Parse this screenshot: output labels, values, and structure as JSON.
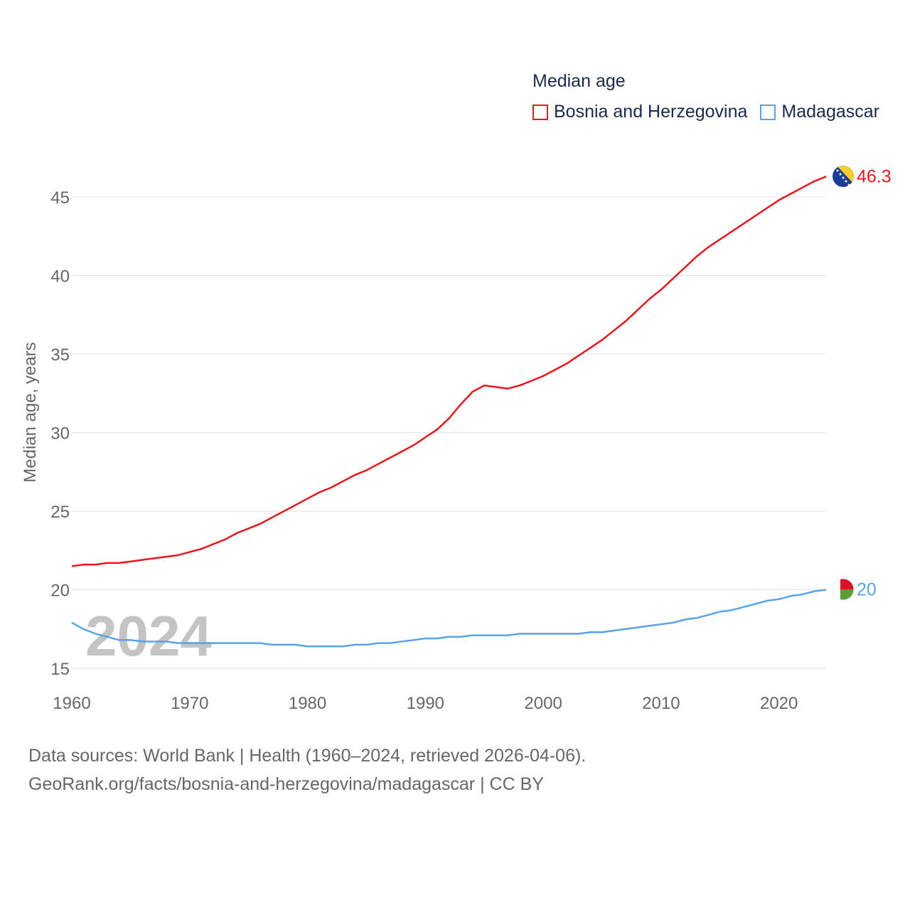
{
  "legend": {
    "title": "Median age",
    "items": [
      {
        "label": "Bosnia and Herzegovina",
        "color": "#e8171f"
      },
      {
        "label": "Madagascar",
        "color": "#5aa3e6"
      }
    ]
  },
  "source": {
    "line1": "Data sources: World Bank | Health (1960–2024, retrieved 2026-04-06).",
    "line2": "GeoRank.org/facts/bosnia-and-herzegovina/madagascar | CC BY"
  },
  "chart_data": {
    "type": "line",
    "title": "Median age",
    "xlabel": "",
    "ylabel": "Median age, years",
    "xlim": [
      1960,
      2024
    ],
    "ylim": [
      15,
      47
    ],
    "x_ticks": [
      1960,
      1970,
      1980,
      1990,
      2000,
      2010,
      2020
    ],
    "y_ticks": [
      15,
      20,
      25,
      30,
      35,
      40,
      45
    ],
    "grid": true,
    "legend_position": "top-right",
    "year_label": "2024",
    "x": [
      1960,
      1961,
      1962,
      1963,
      1964,
      1965,
      1966,
      1967,
      1968,
      1969,
      1970,
      1971,
      1972,
      1973,
      1974,
      1975,
      1976,
      1977,
      1978,
      1979,
      1980,
      1981,
      1982,
      1983,
      1984,
      1985,
      1986,
      1987,
      1988,
      1989,
      1990,
      1991,
      1992,
      1993,
      1994,
      1995,
      1996,
      1997,
      1998,
      1999,
      2000,
      2001,
      2002,
      2003,
      2004,
      2005,
      2006,
      2007,
      2008,
      2009,
      2010,
      2011,
      2012,
      2013,
      2014,
      2015,
      2016,
      2017,
      2018,
      2019,
      2020,
      2021,
      2022,
      2023,
      2024
    ],
    "series": [
      {
        "name": "Bosnia and Herzegovina",
        "color": "#e8171f",
        "end_label": "46.3",
        "values": [
          21.5,
          21.6,
          21.6,
          21.7,
          21.7,
          21.8,
          21.9,
          22.0,
          22.1,
          22.2,
          22.4,
          22.6,
          22.9,
          23.2,
          23.6,
          23.9,
          24.2,
          24.6,
          25.0,
          25.4,
          25.8,
          26.2,
          26.5,
          26.9,
          27.3,
          27.6,
          28.0,
          28.4,
          28.8,
          29.2,
          29.7,
          30.2,
          30.9,
          31.8,
          32.6,
          33.0,
          32.9,
          32.8,
          33.0,
          33.3,
          33.6,
          34.0,
          34.4,
          34.9,
          35.4,
          35.9,
          36.5,
          37.1,
          37.8,
          38.5,
          39.1,
          39.8,
          40.5,
          41.2,
          41.8,
          42.3,
          42.8,
          43.3,
          43.8,
          44.3,
          44.8,
          45.2,
          45.6,
          46.0,
          46.3
        ]
      },
      {
        "name": "Madagascar",
        "color": "#5aa3e6",
        "end_label": "20",
        "values": [
          17.9,
          17.5,
          17.2,
          17.0,
          16.8,
          16.8,
          16.7,
          16.7,
          16.7,
          16.6,
          16.6,
          16.6,
          16.6,
          16.6,
          16.6,
          16.6,
          16.6,
          16.5,
          16.5,
          16.5,
          16.4,
          16.4,
          16.4,
          16.4,
          16.5,
          16.5,
          16.6,
          16.6,
          16.7,
          16.8,
          16.9,
          16.9,
          17.0,
          17.0,
          17.1,
          17.1,
          17.1,
          17.1,
          17.2,
          17.2,
          17.2,
          17.2,
          17.2,
          17.2,
          17.3,
          17.3,
          17.4,
          17.5,
          17.6,
          17.7,
          17.8,
          17.9,
          18.1,
          18.2,
          18.4,
          18.6,
          18.7,
          18.9,
          19.1,
          19.3,
          19.4,
          19.6,
          19.7,
          19.9,
          20.0
        ]
      }
    ]
  }
}
